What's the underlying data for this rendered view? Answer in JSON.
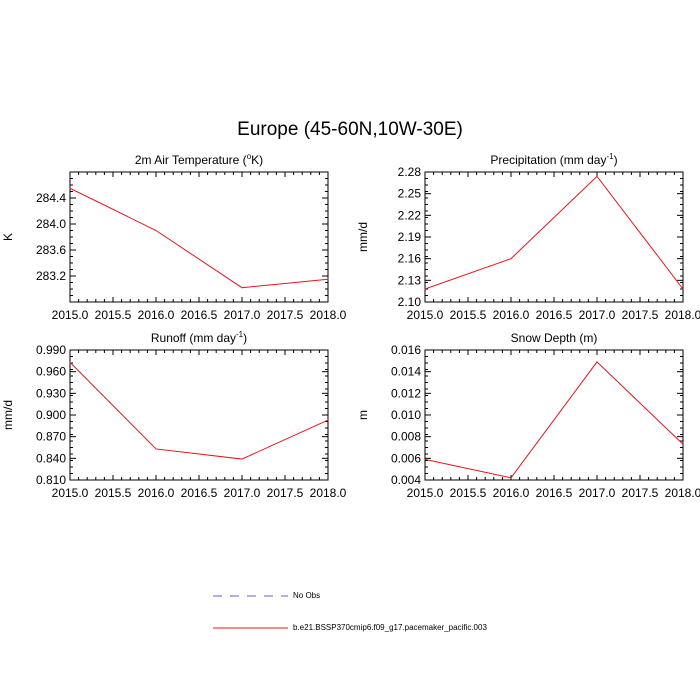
{
  "title": "Europe (45-60N,10W-30E)",
  "colors": {
    "model": "#e8141c",
    "obs": "#5561d6",
    "axis": "#000000"
  },
  "legend": [
    {
      "label": "No Obs",
      "style": "dashed",
      "color": "#5561d6"
    },
    {
      "label": "b.e21.BSSP370cmip6.f09_g17.pacemaker_pacific.003",
      "style": "solid",
      "color": "#e8141c"
    }
  ],
  "chart_data": [
    {
      "type": "line",
      "title": "2m Air Temperature (",
      "title_sup": "o",
      "title_after": "K)",
      "ylabel": "K",
      "xlabel": "",
      "x": [
        2015,
        2016,
        2017,
        2018
      ],
      "xlim": [
        2015,
        2018
      ],
      "xticks": [
        "2015.0",
        "2015.5",
        "2016.0",
        "2016.5",
        "2017.0",
        "2017.5",
        "2018.0"
      ],
      "ylim": [
        282.8,
        284.8
      ],
      "yticks": [
        "283.2",
        "283.6",
        "284.0",
        "284.4"
      ],
      "ytick_values": [
        283.2,
        283.6,
        284.0,
        284.4
      ],
      "series": [
        {
          "name": "b.e21.BSSP370cmip6.f09_g17.pacemaker_pacific.003",
          "values": [
            284.55,
            283.9,
            283.02,
            283.15
          ]
        }
      ]
    },
    {
      "type": "line",
      "title": "Precipitation (mm day",
      "title_sup": "-1",
      "title_after": ")",
      "ylabel": "mm/d",
      "xlabel": "",
      "x": [
        2015,
        2016,
        2017,
        2018
      ],
      "xlim": [
        2015,
        2018
      ],
      "xticks": [
        "2015.0",
        "2015.5",
        "2016.0",
        "2016.5",
        "2017.0",
        "2017.5",
        "2018.0"
      ],
      "ylim": [
        2.1,
        2.28
      ],
      "yticks": [
        "2.10",
        "2.13",
        "2.16",
        "2.19",
        "2.22",
        "2.25",
        "2.28"
      ],
      "ytick_values": [
        2.1,
        2.13,
        2.16,
        2.19,
        2.22,
        2.25,
        2.28
      ],
      "series": [
        {
          "name": "b.e21.BSSP370cmip6.f09_g17.pacemaker_pacific.003",
          "values": [
            2.118,
            2.16,
            2.274,
            2.118
          ]
        }
      ]
    },
    {
      "type": "line",
      "title": "Runoff (mm day",
      "title_sup": "-1",
      "title_after": ")",
      "ylabel": "mm/d",
      "xlabel": "",
      "x": [
        2015,
        2016,
        2017,
        2018
      ],
      "xlim": [
        2015,
        2018
      ],
      "xticks": [
        "2015.0",
        "2015.5",
        "2016.0",
        "2016.5",
        "2017.0",
        "2017.5",
        "2018.0"
      ],
      "ylim": [
        0.81,
        0.99
      ],
      "yticks": [
        "0.810",
        "0.840",
        "0.870",
        "0.900",
        "0.930",
        "0.960",
        "0.990"
      ],
      "ytick_values": [
        0.81,
        0.84,
        0.87,
        0.9,
        0.93,
        0.96,
        0.99
      ],
      "series": [
        {
          "name": "b.e21.BSSP370cmip6.f09_g17.pacemaker_pacific.003",
          "values": [
            0.973,
            0.853,
            0.839,
            0.893
          ]
        }
      ]
    },
    {
      "type": "line",
      "title": "Snow Depth (m)",
      "title_sup": "",
      "title_after": "",
      "ylabel": "m",
      "xlabel": "",
      "x": [
        2015,
        2016,
        2017,
        2018
      ],
      "xlim": [
        2015,
        2018
      ],
      "xticks": [
        "2015.0",
        "2015.5",
        "2016.0",
        "2016.5",
        "2017.0",
        "2017.5",
        "2018.0"
      ],
      "ylim": [
        0.004,
        0.016
      ],
      "yticks": [
        "0.004",
        "0.006",
        "0.008",
        "0.010",
        "0.012",
        "0.014",
        "0.016"
      ],
      "ytick_values": [
        0.004,
        0.006,
        0.008,
        0.01,
        0.012,
        0.014,
        0.016
      ],
      "series": [
        {
          "name": "b.e21.BSSP370cmip6.f09_g17.pacemaker_pacific.003",
          "values": [
            0.0059,
            0.0042,
            0.0149,
            0.0073
          ]
        }
      ]
    }
  ]
}
